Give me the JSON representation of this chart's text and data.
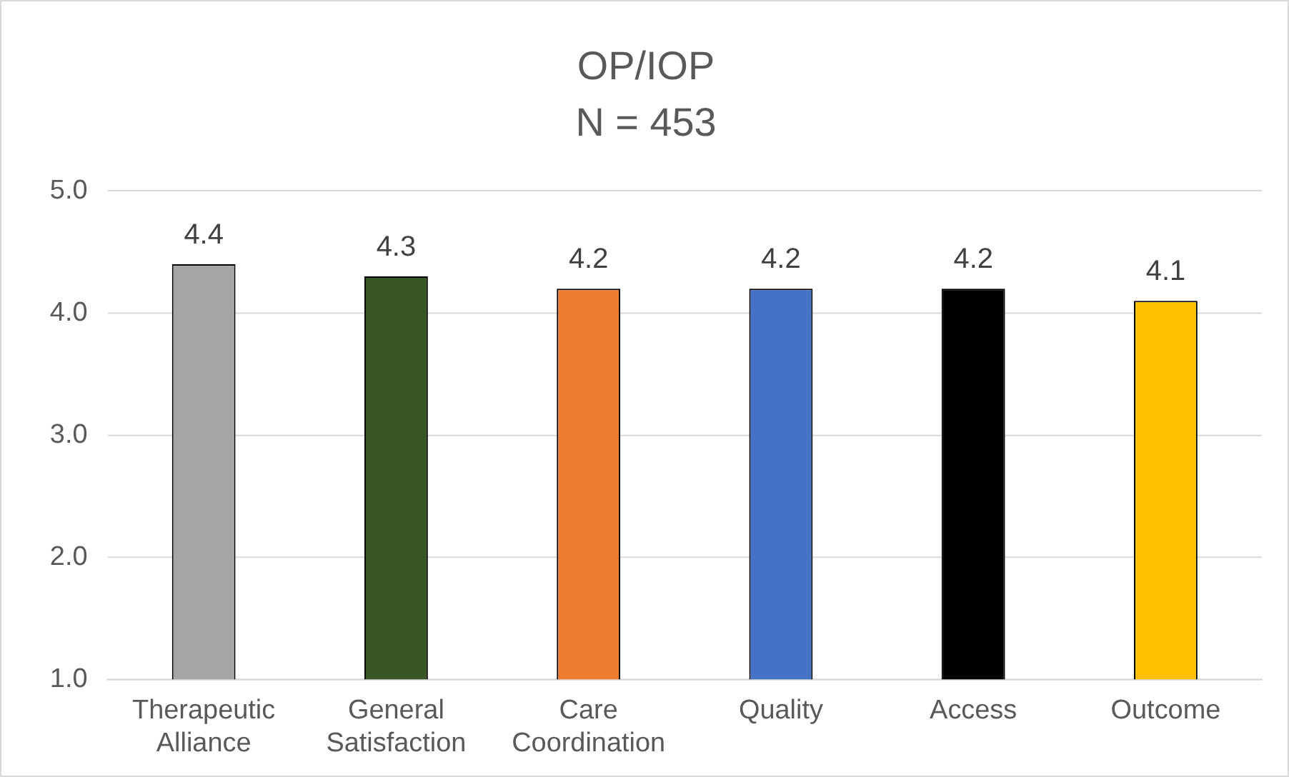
{
  "chart_data": {
    "type": "bar",
    "title": "OP/IOP",
    "subtitle": "N = 453",
    "categories": [
      "Therapeutic Alliance",
      "General Satisfaction",
      "Care Coordination",
      "Quality",
      "Access",
      "Outcome"
    ],
    "values": [
      4.4,
      4.3,
      4.2,
      4.2,
      4.2,
      4.1
    ],
    "colors": [
      "#a5a5a5",
      "#375623",
      "#ed7d31",
      "#4472c4",
      "#000000",
      "#ffc000"
    ],
    "ylim": [
      1,
      5
    ],
    "yticks": [
      {
        "value": 1,
        "label": "1.0"
      },
      {
        "value": 2,
        "label": "2.0"
      },
      {
        "value": 3,
        "label": "3.0"
      },
      {
        "value": 4,
        "label": "4.0"
      },
      {
        "value": 5,
        "label": "5.0"
      }
    ],
    "grid": "y",
    "data_labels": true,
    "legend": false
  }
}
